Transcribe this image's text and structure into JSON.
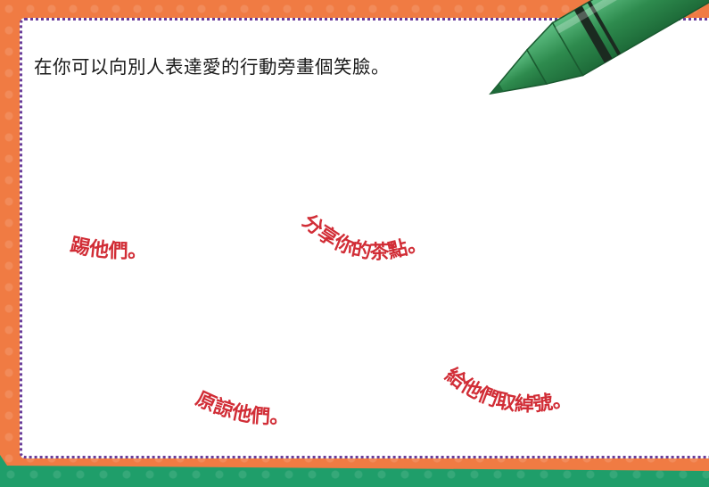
{
  "instruction": "在你可以向別人表達愛的行動旁畫個笑臉。",
  "phrases": {
    "kick": "踢他們。",
    "share": "分享你的茶點。",
    "forgive": "原諒他們。",
    "nickname": "給他們取綽號。"
  },
  "colors": {
    "phrase_red": "#d12d36",
    "frame_orange": "#f07b43",
    "frame_green": "#1f9e6a",
    "dots_purple": "#6a3d9a",
    "crayon_green": "#2e8b4e"
  }
}
